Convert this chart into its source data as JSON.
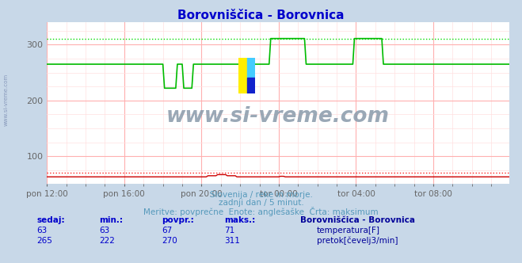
{
  "title": "Borovniščica - Borovnica",
  "title_color": "#0000cc",
  "bg_color": "#c8d8e8",
  "plot_bg_color": "#ffffff",
  "grid_major_color": "#ffb0b0",
  "grid_minor_color": "#ffe0e0",
  "xlim": [
    0,
    287
  ],
  "ylim": [
    50,
    340
  ],
  "yticks": [
    100,
    200,
    300
  ],
  "xtick_labels": [
    "pon 12:00",
    "pon 16:00",
    "pon 20:00",
    "tor 00:00",
    "tor 04:00",
    "tor 08:00"
  ],
  "xtick_positions": [
    0,
    48,
    96,
    144,
    192,
    240
  ],
  "temp_color": "#cc0000",
  "temp_max_color": "#ff2222",
  "flow_color": "#00bb00",
  "flow_max_color": "#00dd00",
  "temp_avg": 67,
  "temp_min": 63,
  "temp_max": 71,
  "temp_current": 63,
  "flow_avg": 270,
  "flow_min": 222,
  "flow_max": 311,
  "flow_current": 265,
  "watermark": "www.si-vreme.com",
  "watermark_color": "#8899aa",
  "subtitle1": "Slovenija / reke in morje.",
  "subtitle2": "zadnji dan / 5 minut.",
  "subtitle3": "Meritve: povprečne  Enote: anglešaške  Črta: maksimum",
  "subtitle_color": "#5599bb",
  "legend_title": "Borovniščica - Borovnica",
  "legend_label1": "temperatura[F]",
  "legend_label2": "pretok[čevelj3/min]",
  "legend_color": "#000099",
  "table_header_color": "#0000cc",
  "table_value_color": "#0000cc",
  "sidebar_text": "www.si-vreme.com",
  "sidebar_color": "#8899bb"
}
